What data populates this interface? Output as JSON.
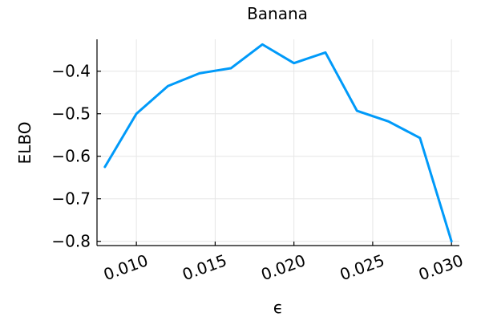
{
  "chart_data": {
    "type": "line",
    "title": "Banana",
    "xlabel": "ϵ",
    "ylabel": "ELBO",
    "xlim": [
      0.0075,
      0.0305
    ],
    "ylim": [
      -0.81,
      -0.325
    ],
    "x_ticks": [
      0.01,
      0.015,
      0.02,
      0.025,
      0.03
    ],
    "x_tick_labels": [
      "0.010",
      "0.015",
      "0.020",
      "0.025",
      "0.030"
    ],
    "y_ticks": [
      -0.4,
      -0.5,
      -0.6,
      -0.7,
      -0.8
    ],
    "y_tick_labels": [
      "−0.4",
      "−0.5",
      "−0.6",
      "−0.7",
      "−0.8"
    ],
    "grid": true,
    "legend": "none",
    "series": [
      {
        "color": "#009af9",
        "x": [
          0.008,
          0.01,
          0.012,
          0.014,
          0.016,
          0.018,
          0.02,
          0.022,
          0.024,
          0.026,
          0.028,
          0.03
        ],
        "y": [
          -0.625,
          -0.5,
          -0.435,
          -0.405,
          -0.393,
          -0.337,
          -0.381,
          -0.356,
          -0.493,
          -0.518,
          -0.557,
          -0.8
        ]
      }
    ]
  }
}
